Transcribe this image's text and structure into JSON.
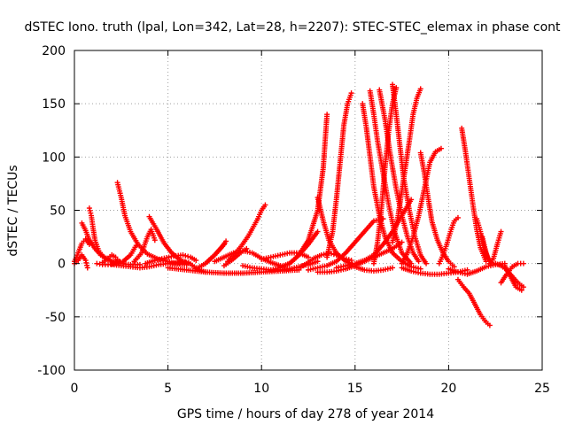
{
  "chart_data": {
    "type": "scatter",
    "title": "dSTEC Iono. truth (lpal, Lon=342, Lat=28, h=2207): STEC-STEC_elemax in phase cont",
    "xlabel": "GPS time / hours of day 278 of year 2014",
    "ylabel": "dSTEC  / TECUs",
    "xlim": [
      0,
      25
    ],
    "ylim": [
      -100,
      200
    ],
    "x_ticks": [
      0,
      5,
      10,
      15,
      20,
      25
    ],
    "y_ticks": [
      -100,
      -50,
      0,
      50,
      100,
      150,
      200
    ],
    "grid": true,
    "marker": "+",
    "color": "#ff0000",
    "arcs": [
      {
        "x": [
          0.0,
          0.2,
          0.4,
          0.6,
          0.8
        ],
        "y": [
          2,
          10,
          19,
          23,
          18
        ]
      },
      {
        "x": [
          0.4,
          0.6,
          0.8,
          1.1,
          1.4,
          1.8,
          2.2,
          2.6
        ],
        "y": [
          38,
          31,
          22,
          14,
          8,
          4,
          1,
          0
        ]
      },
      {
        "x": [
          0.8,
          0.9,
          1.0,
          1.1,
          1.3,
          1.6,
          2.0,
          2.5,
          3.0,
          3.5
        ],
        "y": [
          52,
          45,
          33,
          22,
          12,
          5,
          2,
          0,
          -1,
          -1
        ]
      },
      {
        "x": [
          0.0,
          0.2,
          0.4,
          0.6,
          0.7
        ],
        "y": [
          0,
          3,
          8,
          3,
          -4
        ]
      },
      {
        "x": [
          1.5,
          1.8,
          2.0,
          2.2,
          2.4
        ],
        "y": [
          1,
          5,
          8,
          6,
          2
        ]
      },
      {
        "x": [
          2.3,
          2.5,
          2.7,
          3.0,
          3.4,
          3.9,
          4.5,
          5.2,
          6.0
        ],
        "y": [
          76,
          62,
          45,
          30,
          18,
          9,
          4,
          1,
          0
        ]
      },
      {
        "x": [
          1.2,
          1.5,
          1.8,
          2.2,
          2.6,
          3.0,
          3.3
        ],
        "y": [
          0,
          -1,
          -1,
          0,
          2,
          8,
          17
        ]
      },
      {
        "x": [
          3.2,
          3.6,
          3.9,
          4.1,
          4.3
        ],
        "y": [
          2,
          10,
          25,
          32,
          22
        ]
      },
      {
        "x": [
          4.0,
          4.4,
          4.8,
          5.2,
          5.6,
          6.1
        ],
        "y": [
          44,
          32,
          19,
          10,
          4,
          0
        ]
      },
      {
        "x": [
          2.0,
          2.5,
          3.0,
          3.5,
          4.0,
          4.5,
          5.0,
          5.5,
          6.0
        ],
        "y": [
          -1,
          -2,
          -3,
          -4,
          -3,
          -1,
          0,
          0,
          -1
        ]
      },
      {
        "x": [
          3.8,
          4.3,
          4.8,
          5.3,
          5.8,
          6.2,
          6.5
        ],
        "y": [
          0,
          3,
          5,
          7,
          8,
          6,
          3
        ]
      },
      {
        "x": [
          5.5,
          5.8,
          6.1,
          6.4,
          6.7,
          7.0
        ],
        "y": [
          0,
          2,
          1,
          -3,
          -6,
          -8
        ]
      },
      {
        "x": [
          5.0,
          6.0,
          7.0,
          8.0,
          9.0,
          10.0,
          11.0,
          12.0
        ],
        "y": [
          -4,
          -6,
          -8,
          -9,
          -9,
          -8,
          -7,
          -6
        ]
      },
      {
        "x": [
          6.5,
          7.0,
          7.5,
          8.0
        ],
        "y": [
          -5,
          0,
          8,
          18
        ]
      },
      {
        "x": [
          7.0,
          7.3,
          7.6,
          7.9,
          8.1
        ],
        "y": [
          0,
          5,
          10,
          16,
          21
        ]
      },
      {
        "x": [
          7.5,
          8.0,
          8.5,
          9.0,
          9.5,
          10.0,
          10.5,
          11.0
        ],
        "y": [
          2,
          6,
          10,
          12,
          10,
          5,
          1,
          -2
        ]
      },
      {
        "x": [
          8.2,
          8.5,
          8.9,
          9.3,
          9.8,
          10.0,
          10.2
        ],
        "y": [
          2,
          8,
          16,
          26,
          42,
          50,
          55
        ]
      },
      {
        "x": [
          8.0,
          8.4,
          8.8,
          9.2
        ],
        "y": [
          -2,
          3,
          9,
          14
        ]
      },
      {
        "x": [
          9.0,
          9.5,
          10.0,
          10.5,
          11.0,
          11.5,
          12.0,
          12.5,
          13.0
        ],
        "y": [
          -2,
          -4,
          -5,
          -6,
          -6,
          -5,
          -3,
          -1,
          2
        ]
      },
      {
        "x": [
          10.5,
          11.0,
          11.5,
          12.0,
          12.5,
          13.0
        ],
        "y": [
          -6,
          -4,
          0,
          8,
          18,
          30
        ]
      },
      {
        "x": [
          10.0,
          10.5,
          11.0,
          11.5,
          12.0,
          12.5
        ],
        "y": [
          4,
          6,
          8,
          10,
          10,
          6
        ]
      },
      {
        "x": [
          11.0,
          11.5,
          12.0,
          12.5,
          13.0,
          13.3,
          13.5
        ],
        "y": [
          -3,
          0,
          8,
          22,
          50,
          90,
          140
        ]
      },
      {
        "x": [
          12.0,
          12.4,
          12.8,
          13.2,
          13.6,
          14.0,
          14.4,
          14.8
        ],
        "y": [
          -4,
          0,
          5,
          8,
          10,
          8,
          5,
          3
        ]
      },
      {
        "x": [
          12.5,
          13.0,
          13.5,
          14.0,
          14.5,
          15.0,
          15.5,
          16.0,
          16.5
        ],
        "y": [
          -6,
          -4,
          -2,
          2,
          10,
          20,
          30,
          40,
          42
        ]
      },
      {
        "x": [
          13.0,
          13.3,
          13.6,
          14.0,
          14.5,
          15.0,
          15.5,
          16.0,
          16.5,
          17.0
        ],
        "y": [
          62,
          40,
          22,
          10,
          2,
          -3,
          -6,
          -7,
          -6,
          -4
        ]
      },
      {
        "x": [
          13.0,
          13.5,
          14.0,
          14.5,
          15.0,
          15.5,
          16.0,
          16.5,
          17.0,
          17.5
        ],
        "y": [
          -8,
          -8,
          -7,
          -5,
          -2,
          2,
          6,
          10,
          14,
          20
        ]
      },
      {
        "x": [
          13.5,
          13.8,
          14.0,
          14.2,
          14.4,
          14.6,
          14.8
        ],
        "y": [
          6,
          30,
          60,
          95,
          130,
          150,
          160
        ]
      },
      {
        "x": [
          14.0,
          14.5,
          15.0,
          15.5,
          16.0,
          16.5,
          17.0,
          17.5,
          18.0
        ],
        "y": [
          -4,
          -2,
          0,
          3,
          8,
          18,
          30,
          45,
          60
        ]
      },
      {
        "x": [
          15.4,
          15.6,
          15.8,
          16.0,
          16.3,
          16.6,
          17.0,
          17.5,
          18.0,
          18.5
        ],
        "y": [
          150,
          128,
          100,
          72,
          45,
          25,
          10,
          2,
          -3,
          -5
        ]
      },
      {
        "x": [
          15.8,
          16.0,
          16.2,
          16.5,
          16.8,
          17.1,
          17.5,
          18.0
        ],
        "y": [
          162,
          140,
          115,
          85,
          55,
          30,
          10,
          0
        ]
      },
      {
        "x": [
          16.0,
          16.2,
          16.4,
          16.6,
          16.8,
          17.0,
          17.2
        ],
        "y": [
          0,
          20,
          50,
          90,
          125,
          150,
          165
        ]
      },
      {
        "x": [
          16.3,
          16.6,
          16.9,
          17.2,
          17.5,
          17.8,
          18.1,
          18.4
        ],
        "y": [
          163,
          135,
          100,
          70,
          45,
          25,
          10,
          2
        ]
      },
      {
        "x": [
          17.0,
          17.2,
          17.4,
          17.6,
          17.9,
          18.2,
          18.5,
          18.8
        ],
        "y": [
          168,
          140,
          110,
          80,
          50,
          25,
          8,
          0
        ]
      },
      {
        "x": [
          17.0,
          17.3,
          17.6,
          17.9,
          18.1,
          18.3,
          18.5
        ],
        "y": [
          20,
          45,
          80,
          115,
          140,
          155,
          164
        ]
      },
      {
        "x": [
          17.5,
          17.8,
          18.1,
          18.4,
          18.7,
          19.0,
          19.3,
          19.6
        ],
        "y": [
          0,
          10,
          25,
          45,
          70,
          95,
          105,
          108
        ]
      },
      {
        "x": [
          18.5,
          18.7,
          18.9,
          19.1,
          19.4,
          19.7,
          20.0,
          20.3
        ],
        "y": [
          104,
          85,
          62,
          40,
          22,
          10,
          2,
          -3
        ]
      },
      {
        "x": [
          17.5,
          18.0,
          18.5,
          19.0,
          19.5,
          20.0,
          20.5,
          21.0
        ],
        "y": [
          -4,
          -7,
          -9,
          -10,
          -10,
          -9,
          -8,
          -6
        ]
      },
      {
        "x": [
          19.5,
          19.7,
          19.9,
          20.1,
          20.3,
          20.5
        ],
        "y": [
          0,
          8,
          18,
          30,
          40,
          43
        ]
      },
      {
        "x": [
          20.7,
          20.9,
          21.1,
          21.3,
          21.5,
          21.7,
          22.0
        ],
        "y": [
          127,
          105,
          80,
          55,
          32,
          15,
          2
        ]
      },
      {
        "x": [
          20.5,
          20.8,
          21.1,
          21.4,
          21.7,
          22.0,
          22.2
        ],
        "y": [
          -15,
          -22,
          -28,
          -38,
          -48,
          -55,
          -58
        ]
      },
      {
        "x": [
          21.5,
          21.7,
          21.9,
          22.1,
          22.3,
          22.5
        ],
        "y": [
          42,
          30,
          15,
          5,
          1,
          0
        ]
      },
      {
        "x": [
          21.8,
          22.0,
          22.2,
          22.4,
          22.6,
          22.8
        ],
        "y": [
          25,
          10,
          0,
          5,
          18,
          30
        ]
      },
      {
        "x": [
          22.5,
          22.8,
          23.1,
          23.4,
          23.7,
          24.0
        ],
        "y": [
          0,
          -2,
          -6,
          -12,
          -18,
          -22
        ]
      },
      {
        "x": [
          22.8,
          23.1,
          23.4,
          23.7,
          24.0
        ],
        "y": [
          -18,
          -10,
          -3,
          0,
          0
        ]
      },
      {
        "x": [
          23.0,
          23.3,
          23.6,
          23.9
        ],
        "y": [
          -2,
          -12,
          -22,
          -25
        ]
      },
      {
        "x": [
          20.0,
          20.5,
          21.0,
          21.5,
          22.0,
          22.5,
          23.0
        ],
        "y": [
          -5,
          -8,
          -10,
          -7,
          -3,
          -1,
          0
        ]
      }
    ]
  }
}
